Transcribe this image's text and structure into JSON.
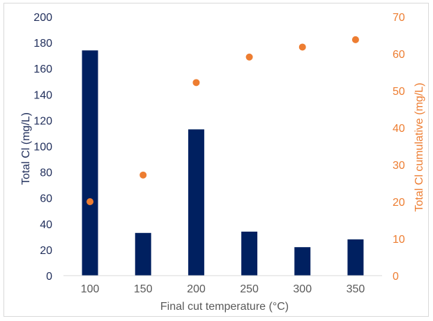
{
  "chart_data": {
    "type": "bar",
    "title": "",
    "xlabel": "Final cut temperature (°C)",
    "ylabel": "Total Cl (mg/L)",
    "y2label": "Total Cl cumulative (mg/L)",
    "categories": [
      "100",
      "150",
      "200",
      "250",
      "300",
      "350"
    ],
    "ylim": [
      0,
      200
    ],
    "y2lim": [
      0,
      70
    ],
    "yticks": [
      "0",
      "20",
      "40",
      "60",
      "80",
      "100",
      "120",
      "140",
      "160",
      "180",
      "200"
    ],
    "y2ticks": [
      "0",
      "10",
      "20",
      "30",
      "40",
      "50",
      "60",
      "70"
    ],
    "grid": false,
    "legend": "none",
    "series": [
      {
        "type": "bar",
        "axis": "left",
        "color": "#002060",
        "values": [
          174,
          33,
          113,
          34,
          22,
          28
        ]
      },
      {
        "type": "scatter",
        "axis": "right",
        "color": "#ED7D31",
        "values": [
          20,
          27.2,
          52.2,
          59.1,
          61.8,
          63.8
        ]
      }
    ],
    "colors": {
      "left_axis_text": "#1F2D5A",
      "right_axis_text": "#ED7D31",
      "x_axis_text": "#595959"
    }
  }
}
